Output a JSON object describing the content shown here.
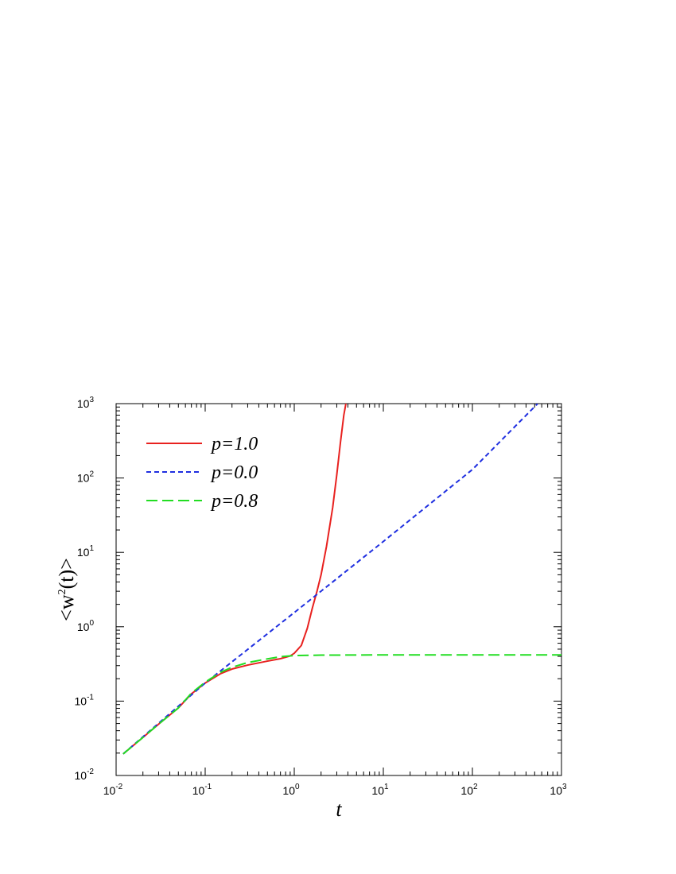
{
  "chart_data": {
    "type": "line",
    "title": "",
    "xlabel": "t",
    "ylabel": {
      "prefix": "<w",
      "sup": "2",
      "suffix": "(t)>"
    },
    "xscale": "log",
    "yscale": "log",
    "xlim": [
      0.01,
      1000
    ],
    "ylim": [
      0.01,
      1000
    ],
    "x_ticks": [
      {
        "base": "10",
        "exp": "-2"
      },
      {
        "base": "10",
        "exp": "-1"
      },
      {
        "base": "10",
        "exp": "0"
      },
      {
        "base": "10",
        "exp": "1"
      },
      {
        "base": "10",
        "exp": "2"
      },
      {
        "base": "10",
        "exp": "3"
      }
    ],
    "y_ticks": [
      {
        "base": "10",
        "exp": "-2"
      },
      {
        "base": "10",
        "exp": "-1"
      },
      {
        "base": "10",
        "exp": "0"
      },
      {
        "base": "10",
        "exp": "1"
      },
      {
        "base": "10",
        "exp": "2"
      },
      {
        "base": "10",
        "exp": "3"
      }
    ],
    "grid": false,
    "legend_position": "top-left",
    "series": [
      {
        "name": "p=1.0",
        "color": "#e8211f",
        "dash": "solid",
        "points": [
          [
            0.012,
            0.0195
          ],
          [
            0.02,
            0.0325
          ],
          [
            0.03,
            0.049
          ],
          [
            0.05,
            0.081
          ],
          [
            0.07,
            0.125
          ],
          [
            0.1,
            0.175
          ],
          [
            0.15,
            0.235
          ],
          [
            0.2,
            0.27
          ],
          [
            0.3,
            0.305
          ],
          [
            0.5,
            0.345
          ],
          [
            0.7,
            0.372
          ],
          [
            0.9,
            0.405
          ],
          [
            1.0,
            0.44
          ],
          [
            1.2,
            0.56
          ],
          [
            1.4,
            0.95
          ],
          [
            1.6,
            1.8
          ],
          [
            1.8,
            3.0
          ],
          [
            2.0,
            5.0
          ],
          [
            2.3,
            12.0
          ],
          [
            2.7,
            40.0
          ],
          [
            3.0,
            110.0
          ],
          [
            3.3,
            300.0
          ],
          [
            3.6,
            700.0
          ],
          [
            3.8,
            1000.0
          ]
        ]
      },
      {
        "name": "p=0.0",
        "color": "#1f2fe0",
        "dash": "short-dash",
        "points": [
          [
            0.012,
            0.0195
          ],
          [
            0.1,
            0.175
          ],
          [
            1.0,
            1.55
          ],
          [
            10.0,
            14.0
          ],
          [
            100.0,
            130.0
          ],
          [
            540.0,
            1000.0
          ]
        ]
      },
      {
        "name": "p=0.8",
        "color": "#22dd22",
        "dash": "long-dash",
        "points": [
          [
            0.012,
            0.0195
          ],
          [
            0.02,
            0.0325
          ],
          [
            0.03,
            0.049
          ],
          [
            0.05,
            0.081
          ],
          [
            0.07,
            0.128
          ],
          [
            0.1,
            0.18
          ],
          [
            0.15,
            0.245
          ],
          [
            0.2,
            0.285
          ],
          [
            0.3,
            0.33
          ],
          [
            0.5,
            0.37
          ],
          [
            0.7,
            0.395
          ],
          [
            1.0,
            0.41
          ],
          [
            2.0,
            0.415
          ],
          [
            10.0,
            0.418
          ],
          [
            100.0,
            0.418
          ],
          [
            1000.0,
            0.418
          ]
        ]
      }
    ]
  }
}
